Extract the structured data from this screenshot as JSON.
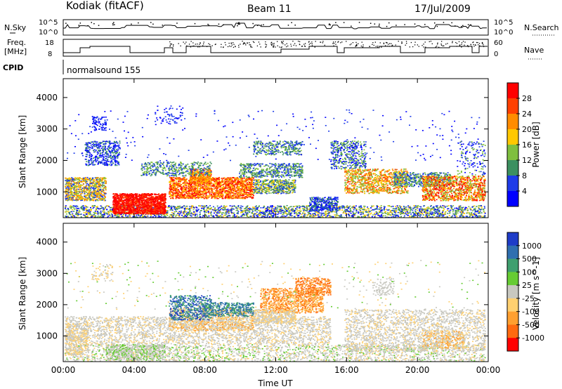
{
  "header": {
    "station": "Kodiak (fitACF)",
    "beam": "Beam 11",
    "date": "17/Jul/2009"
  },
  "noise_panel": {
    "left_label": "N.Sky",
    "right_label": "N.Search",
    "left_ticks": [
      "10^5",
      "10^0"
    ],
    "right_ticks": [
      "10^5",
      "10^0"
    ]
  },
  "freq_panel": {
    "left_label_1": "Freq.",
    "left_label_2": "[MHz]",
    "right_label": "Nave",
    "left_ticks": [
      "18",
      "8"
    ],
    "right_ticks": [
      "60",
      "0"
    ]
  },
  "cpid": {
    "label": "CPID",
    "value": "normalsound 155"
  },
  "chart_data": [
    {
      "type": "heatmap",
      "name": "power",
      "ylabel": "Slant Range [km]",
      "ylim": [
        180,
        4600
      ],
      "yticks": [
        "4000",
        "3000",
        "2000",
        "1000"
      ],
      "colorbar_label": "Power [dB]",
      "colorbar_ticks": [
        "28",
        "24",
        "20",
        "16",
        "12",
        "8",
        "4"
      ],
      "colorbar_colors": [
        "#ff0000",
        "#ff4000",
        "#ff8c00",
        "#ffc800",
        "#7fbf3f",
        "#3c9060",
        "#1e3ce8",
        "#0000ff"
      ]
    },
    {
      "type": "heatmap",
      "name": "velocity",
      "ylabel": "Slant Range [km]",
      "ylim": [
        180,
        4600
      ],
      "yticks": [
        "4000",
        "3000",
        "2000",
        "1000"
      ],
      "colorbar_label": "Velocity [m s^-1]",
      "colorbar_ticks": [
        "1000",
        "500",
        "100",
        "25",
        "-25",
        "-100",
        "-500",
        "-1000"
      ],
      "colorbar_colors": [
        "#1e3cc8",
        "#2f6fb0",
        "#3f9f6f",
        "#66cc33",
        "#c8c8c0",
        "#ffd070",
        "#ffa030",
        "#ff6a10",
        "#ff0000"
      ]
    }
  ],
  "xaxis": {
    "label": "Time UT",
    "ticks": [
      "00:00",
      "04:00",
      "08:00",
      "12:00",
      "16:00",
      "20:00",
      "00:00"
    ]
  }
}
